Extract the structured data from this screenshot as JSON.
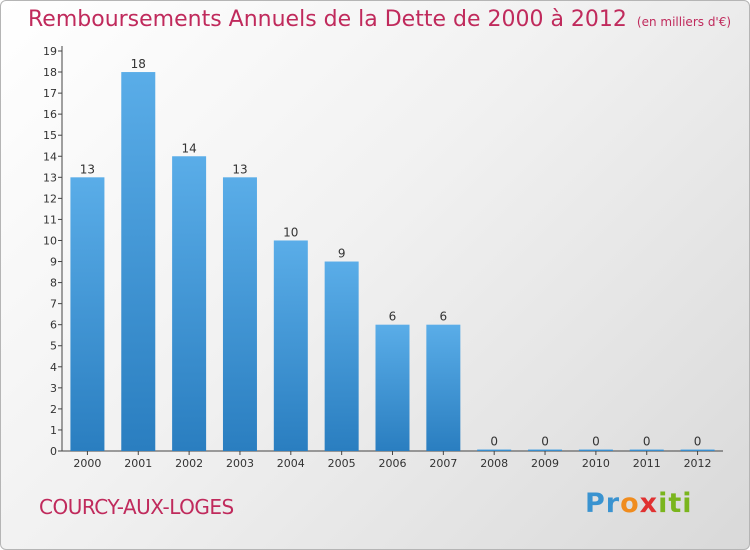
{
  "title": "Remboursements Annuels de la Dette de 2000 à 2012",
  "unit_note": "(en milliers d'€)",
  "commune": "COURCY-AUX-LOGES",
  "logo": {
    "text": "Proxiti"
  },
  "colors": {
    "title": "#c02a5c",
    "bar_top": "#5aade8",
    "bar_bottom": "#2a7ec0"
  },
  "chart_data": {
    "type": "bar",
    "title": "Remboursements Annuels de la Dette de 2000 à 2012",
    "xlabel": "",
    "ylabel": "",
    "categories": [
      "2000",
      "2001",
      "2002",
      "2003",
      "2004",
      "2005",
      "2006",
      "2007",
      "2008",
      "2009",
      "2010",
      "2011",
      "2012"
    ],
    "values": [
      13,
      18,
      14,
      13,
      10,
      9,
      6,
      6,
      0,
      0,
      0,
      0,
      0
    ],
    "ylim": [
      0,
      19
    ],
    "yticks": [
      0,
      1,
      2,
      3,
      4,
      5,
      6,
      7,
      8,
      9,
      10,
      11,
      12,
      13,
      14,
      15,
      16,
      17,
      18,
      19
    ],
    "grid": false,
    "legend": "none"
  }
}
